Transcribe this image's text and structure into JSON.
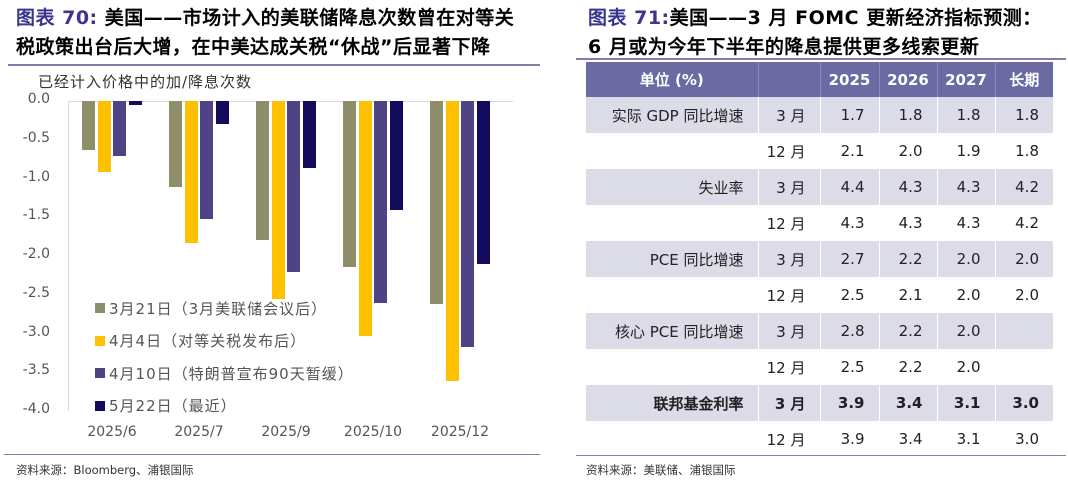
{
  "left_panel": {
    "title_prefix": "图表 70:",
    "title_line1": " 美国——市场计入的美联储降息次数曾在对等关",
    "title_line2": "税政策出台后大增，在中美达成关税“休战”后显著下降",
    "source": "资料来源：Bloomberg、浦银国际"
  },
  "right_panel": {
    "title_prefix": "图表 71:",
    "title_line1": "美国——3 月 FOMC 更新经济指标预测：",
    "title_line2": "6 月或为今年下半年的降息提供更多线索更新",
    "source": "资料来源：美联储、浦银国际",
    "table": {
      "headers": [
        "单位 (%)",
        "",
        "2025",
        "2026",
        "2027",
        "长期"
      ],
      "rows": [
        {
          "label": "实际 GDP 同比增速",
          "period": "3 月",
          "v2025": "1.7",
          "v2026": "1.8",
          "v2027": "1.8",
          "longrun": "1.8",
          "shade": true,
          "bold": false
        },
        {
          "label": "",
          "period": "12 月",
          "v2025": "2.1",
          "v2026": "2.0",
          "v2027": "1.9",
          "longrun": "1.8",
          "shade": false,
          "bold": false
        },
        {
          "label": "失业率",
          "period": "3 月",
          "v2025": "4.4",
          "v2026": "4.3",
          "v2027": "4.3",
          "longrun": "4.2",
          "shade": true,
          "bold": false
        },
        {
          "label": "",
          "period": "12 月",
          "v2025": "4.3",
          "v2026": "4.3",
          "v2027": "4.3",
          "longrun": "4.2",
          "shade": false,
          "bold": false
        },
        {
          "label": "PCE 同比增速",
          "period": "3 月",
          "v2025": "2.7",
          "v2026": "2.2",
          "v2027": "2.0",
          "longrun": "2.0",
          "shade": true,
          "bold": false
        },
        {
          "label": "",
          "period": "12 月",
          "v2025": "2.5",
          "v2026": "2.1",
          "v2027": "2.0",
          "longrun": "2.0",
          "shade": false,
          "bold": false
        },
        {
          "label": "核心 PCE 同比增速",
          "period": "3 月",
          "v2025": "2.8",
          "v2026": "2.2",
          "v2027": "2.0",
          "longrun": "",
          "shade": true,
          "bold": false
        },
        {
          "label": "",
          "period": "12 月",
          "v2025": "2.5",
          "v2026": "2.2",
          "v2027": "2.0",
          "longrun": "",
          "shade": false,
          "bold": false
        },
        {
          "label": "联邦基金利率",
          "period": "3 月",
          "v2025": "3.9",
          "v2026": "3.4",
          "v2027": "3.1",
          "longrun": "3.0",
          "shade": true,
          "bold": true
        },
        {
          "label": "",
          "period": "12 月",
          "v2025": "3.9",
          "v2026": "3.4",
          "v2027": "3.1",
          "longrun": "3.0",
          "shade": false,
          "bold": false
        }
      ]
    }
  },
  "chart_data": {
    "type": "bar",
    "title": "美国——市场计入的美联储降息次数曾在对等关税政策出台后大增，在中美达成关税“休战”后显著下降",
    "ylabel": "已经计入价格中的加/降息次数",
    "xlabel": "",
    "ylim": [
      -4.0,
      0.0
    ],
    "yticks": [
      "0.0",
      "-0.5",
      "-1.0",
      "-1.5",
      "-2.0",
      "-2.5",
      "-3.0",
      "-3.5",
      "-4.0"
    ],
    "grid": false,
    "legend_position": "inside-lower-left",
    "categories": [
      "2025/6",
      "2025/7",
      "2025/9",
      "2025/10",
      "2025/12"
    ],
    "series": [
      {
        "name": "3月21日（3月美联储会议后）",
        "color": "#8f8e6b",
        "values": [
          -0.63,
          -1.11,
          -1.79,
          -2.14,
          -2.62
        ]
      },
      {
        "name": "4月4日（对等关税发布后）",
        "color": "#ffc000",
        "values": [
          -0.92,
          -1.83,
          -2.55,
          -3.03,
          -3.61
        ]
      },
      {
        "name": "4月10日（特朗普宣布90天暂缓）",
        "color": "#4f4385",
        "values": [
          -0.71,
          -1.52,
          -2.2,
          -2.61,
          -3.17
        ]
      },
      {
        "name": "5月22日（最近）",
        "color": "#120b5e",
        "values": [
          -0.05,
          -0.3,
          -0.86,
          -1.41,
          -2.1
        ]
      }
    ]
  }
}
